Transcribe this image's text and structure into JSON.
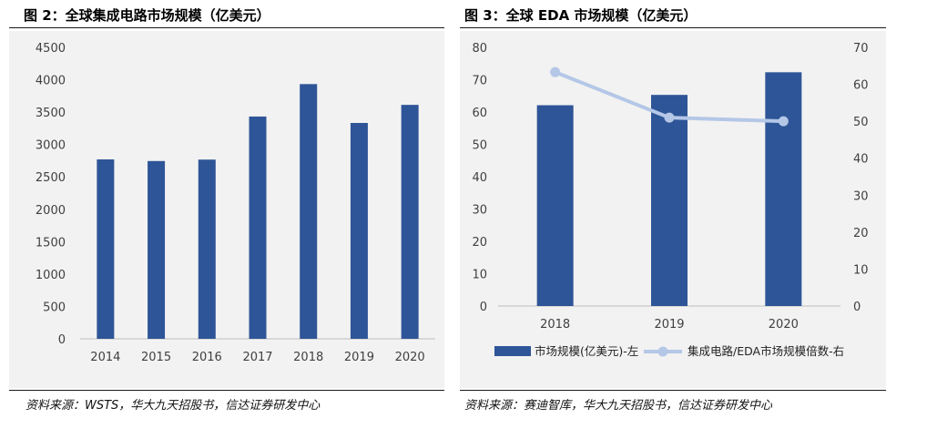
{
  "left_panel": {
    "title": "图 2：全球集成电路市场规模（亿美元）",
    "source": "资料来源：WSTS，华大九天招股书，信达证券研发中心"
  },
  "right_panel": {
    "title": "图 3：全球 EDA 市场规模（亿美元）",
    "source": "资料来源：赛迪智库，华大九天招股书，信达证券研发中心"
  },
  "colors": {
    "bar": "#2e5597",
    "line": "#b4c7e7",
    "bg": "#f2f2f2",
    "text": "#404040"
  },
  "chart_data": [
    {
      "type": "bar",
      "title": "图 2：全球集成电路市场规模（亿美元）",
      "categories": [
        "2014",
        "2015",
        "2016",
        "2017",
        "2018",
        "2019",
        "2020"
      ],
      "values": [
        2770,
        2745,
        2767,
        3432,
        3933,
        3333,
        3612
      ],
      "ylim": [
        0,
        4500
      ],
      "yticks": [
        "0",
        "500",
        "1000",
        "1500",
        "2000",
        "2500",
        "3000",
        "3500",
        "4000",
        "4500"
      ],
      "grid": false,
      "legend": "none"
    },
    {
      "type": "bar",
      "title": "图 3：全球 EDA 市场规模（亿美元）",
      "categories": [
        "2018",
        "2019",
        "2020"
      ],
      "series": [
        {
          "name": "市场规模(亿美元)-左",
          "type": "bar",
          "axis": "left",
          "values": [
            62.1,
            65.3,
            72.3
          ]
        },
        {
          "name": "集成电路/EDA市场规模倍数-右",
          "type": "line",
          "axis": "right",
          "values": [
            63.3,
            51.0,
            50.0
          ]
        }
      ],
      "ylim_left": [
        0,
        80
      ],
      "ylim_right": [
        0,
        70
      ],
      "yticks_left": [
        "0",
        "10",
        "20",
        "30",
        "40",
        "50",
        "60",
        "70",
        "80"
      ],
      "yticks_right": [
        "0",
        "10",
        "20",
        "30",
        "40",
        "50",
        "60",
        "70"
      ],
      "grid": false,
      "legend": "bottom"
    }
  ]
}
